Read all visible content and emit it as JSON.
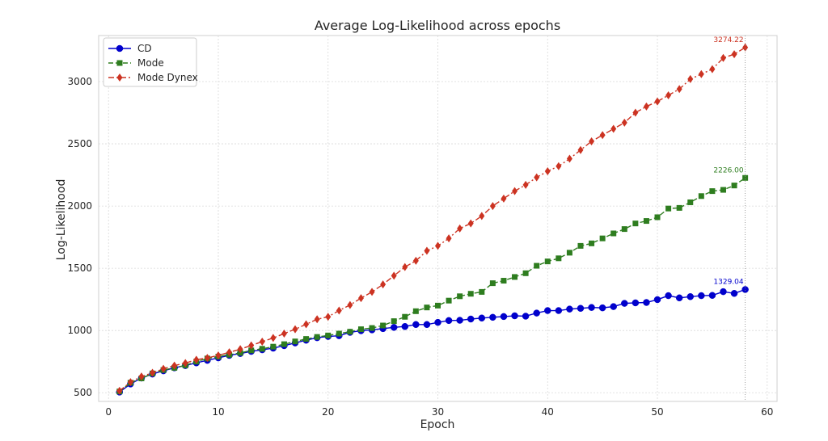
{
  "chart_data": {
    "type": "line",
    "title": "Average Log-Likelihood across epochs",
    "xlabel": "Epoch",
    "ylabel": "Log-Likelihood",
    "xlim": [
      -0.9,
      60.9
    ],
    "ylim": [
      430,
      3370
    ],
    "xticks": [
      0,
      10,
      20,
      30,
      40,
      50,
      60
    ],
    "yticks": [
      500,
      1000,
      1500,
      2000,
      2500,
      3000
    ],
    "grid": true,
    "legend_position": "top-left",
    "x": [
      1,
      2,
      3,
      4,
      5,
      6,
      7,
      8,
      9,
      10,
      11,
      12,
      13,
      14,
      15,
      16,
      17,
      18,
      19,
      20,
      21,
      22,
      23,
      24,
      25,
      26,
      27,
      28,
      29,
      30,
      31,
      32,
      33,
      34,
      35,
      36,
      37,
      38,
      39,
      40,
      41,
      42,
      43,
      44,
      45,
      46,
      47,
      48,
      49,
      50,
      51,
      52,
      53,
      54,
      55,
      56,
      57,
      58
    ],
    "series": [
      {
        "name": "CD",
        "color": "#0000cc",
        "marker": "circle",
        "linestyle": "solid",
        "end_label": "1329.04",
        "values": [
          505,
          570,
          618,
          650,
          676,
          700,
          718,
          740,
          760,
          780,
          800,
          815,
          832,
          845,
          858,
          878,
          900,
          922,
          942,
          952,
          958,
          985,
          998,
          1005,
          1015,
          1025,
          1032,
          1048,
          1048,
          1065,
          1080,
          1082,
          1092,
          1100,
          1106,
          1112,
          1118,
          1115,
          1140,
          1160,
          1160,
          1172,
          1178,
          1185,
          1182,
          1192,
          1218,
          1222,
          1225,
          1248,
          1280,
          1262,
          1272,
          1280,
          1282,
          1312,
          1298,
          1329.04
        ]
      },
      {
        "name": "Mode",
        "color": "#2e7d1f",
        "marker": "square",
        "linestyle": "dashed",
        "end_label": "2226.00",
        "values": [
          510,
          580,
          615,
          655,
          682,
          700,
          720,
          750,
          775,
          790,
          805,
          820,
          840,
          853,
          870,
          890,
          912,
          932,
          948,
          960,
          975,
          990,
          1010,
          1020,
          1040,
          1075,
          1110,
          1155,
          1185,
          1200,
          1240,
          1275,
          1295,
          1310,
          1380,
          1400,
          1430,
          1460,
          1520,
          1555,
          1580,
          1625,
          1680,
          1700,
          1740,
          1780,
          1815,
          1860,
          1880,
          1910,
          1980,
          1985,
          2030,
          2080,
          2120,
          2130,
          2165,
          2226.0
        ]
      },
      {
        "name": "Mode Dynex",
        "color": "#cc3322",
        "marker": "diamond",
        "linestyle": "dashdot",
        "end_label": "3274.22",
        "values": [
          515,
          585,
          630,
          660,
          692,
          718,
          738,
          765,
          780,
          800,
          825,
          850,
          880,
          910,
          940,
          975,
          1010,
          1050,
          1090,
          1110,
          1160,
          1205,
          1260,
          1310,
          1370,
          1440,
          1510,
          1560,
          1640,
          1680,
          1740,
          1820,
          1860,
          1920,
          2000,
          2060,
          2120,
          2170,
          2230,
          2280,
          2320,
          2380,
          2450,
          2520,
          2570,
          2620,
          2670,
          2750,
          2800,
          2840,
          2890,
          2940,
          3020,
          3060,
          3100,
          3190,
          3220,
          3274.22
        ]
      }
    ]
  }
}
